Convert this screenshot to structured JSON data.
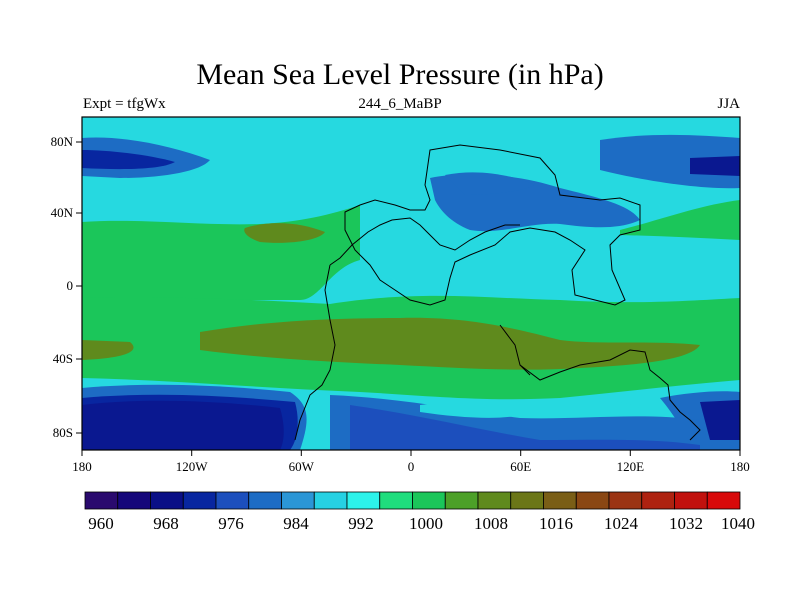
{
  "title": "Mean Sea Level Pressure (in hPa)",
  "subtitle_left": "Expt = tfgWx",
  "subtitle_center": "244_6_MaBP",
  "subtitle_right": "JJA",
  "x_ticks": [
    "180",
    "120W",
    "60W",
    "0",
    "60E",
    "120E",
    "180"
  ],
  "y_ticks": [
    "80N",
    "40N",
    "0",
    "40S",
    "80S"
  ],
  "colorbar": {
    "colors": [
      "#2a0a6e",
      "#15077a",
      "#0a0f86",
      "#0826a0",
      "#1c4fbd",
      "#1d6cc4",
      "#2b96d6",
      "#26d1e3",
      "#2cf2ea",
      "#1fdd7d",
      "#1bc65a",
      "#4ca028",
      "#5f8a1d",
      "#6b7617",
      "#7a5e16",
      "#8a4713",
      "#9b3413",
      "#ae2210",
      "#c1110d",
      "#d8090a"
    ],
    "labels": [
      "960",
      "968",
      "976",
      "984",
      "992",
      "1000",
      "1008",
      "1016",
      "1024",
      "1032",
      "1040"
    ]
  },
  "field": {
    "background": "#26d9e0",
    "regions": [
      {
        "name": "low-pressure-southern-band",
        "level": "968-976",
        "color": "#0a1890"
      },
      {
        "name": "low-pressure-north-pacific",
        "level": "984",
        "color": "#1d6cc4"
      },
      {
        "name": "high-pressure-southern-belt",
        "level": "1012-1016",
        "color": "#5f8a1d"
      },
      {
        "name": "subtropical-high-north",
        "level": "1008",
        "color": "#1bc65a"
      }
    ]
  },
  "colors": {
    "text": "#000000",
    "coastline": "#000000"
  }
}
